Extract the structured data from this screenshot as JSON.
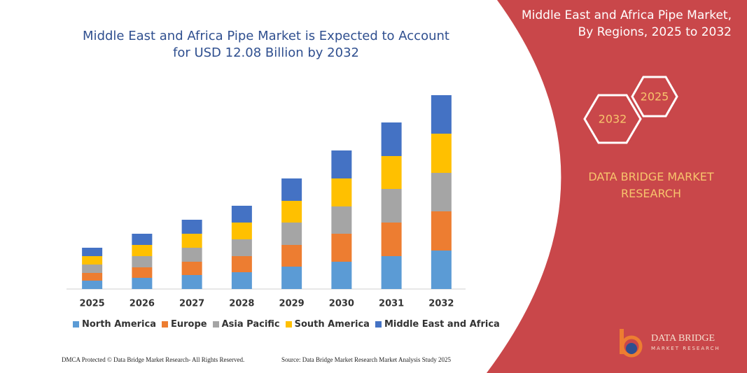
{
  "chart_data": {
    "type": "stacked_bar",
    "title": "Middle East and Africa Pipe Market is Expected to Account for USD 12.08 Billion by 2032",
    "categories": [
      "2025",
      "2026",
      "2027",
      "2028",
      "2029",
      "2030",
      "2031",
      "2032"
    ],
    "series": [
      {
        "name": "North America",
        "color": "#5b9bd5",
        "values": [
          12,
          16,
          20,
          24,
          32,
          39,
          47,
          55
        ]
      },
      {
        "name": "Europe",
        "color": "#ed7d31",
        "values": [
          11,
          15,
          19,
          23,
          31,
          40,
          48,
          56
        ]
      },
      {
        "name": "Asia Pacific",
        "color": "#a5a5a5",
        "values": [
          12,
          16,
          20,
          24,
          32,
          39,
          48,
          55
        ]
      },
      {
        "name": "South America",
        "color": "#ffc000",
        "values": [
          12,
          16,
          20,
          24,
          31,
          40,
          47,
          56
        ]
      },
      {
        "name": "Middle East and Africa",
        "color": "#4472c4",
        "values": [
          12,
          16,
          20,
          24,
          32,
          40,
          48,
          55
        ]
      }
    ],
    "ylim": [
      0,
      300
    ]
  },
  "panel": {
    "title": [
      "Middle East and Africa Pipe Market,",
      "By Regions, 2025 to 2032"
    ],
    "hex_labels": [
      "2025",
      "2032"
    ],
    "brand": "DATA BRIDGE MARKET RESEARCH"
  },
  "logo": {
    "name": "DATA BRIDGE",
    "tagline": "MARKET RESEARCH"
  },
  "footer": {
    "dmca": "DMCA Protected © Data Bridge Market Research-  All Rights Reserved.",
    "source": "Source: Data Bridge Market Research  Market Analysis Study 2025"
  }
}
